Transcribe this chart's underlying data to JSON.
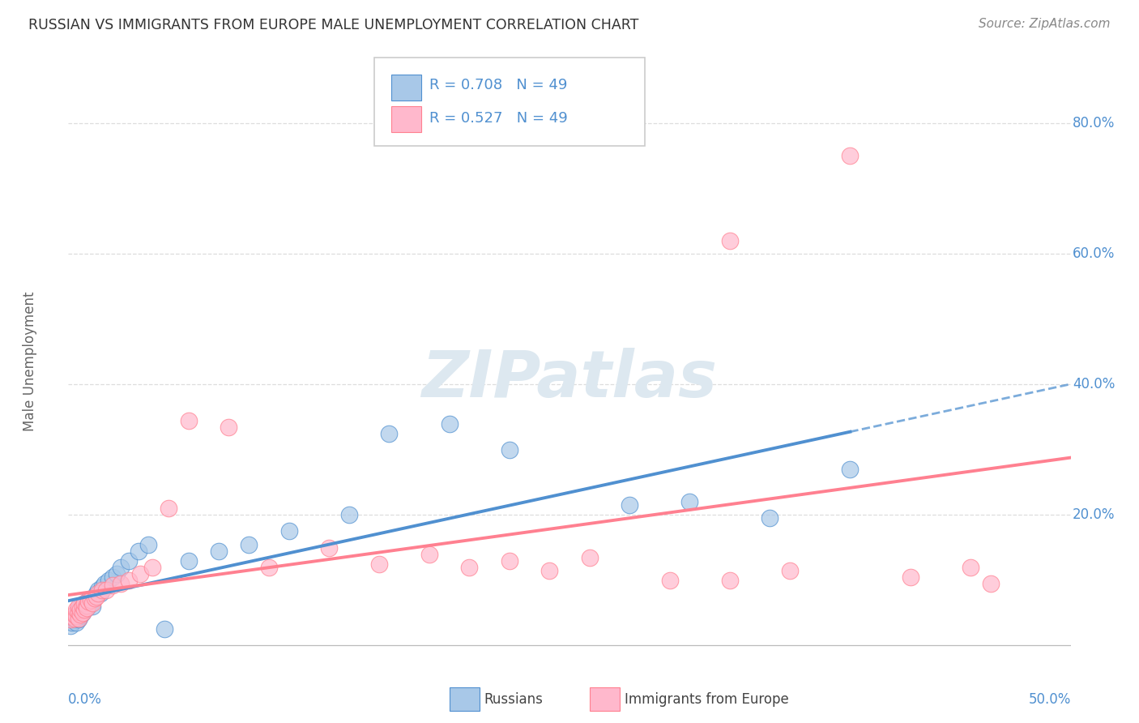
{
  "title": "RUSSIAN VS IMMIGRANTS FROM EUROPE MALE UNEMPLOYMENT CORRELATION CHART",
  "source": "Source: ZipAtlas.com",
  "ylabel": "Male Unemployment",
  "right_yticks": [
    "80.0%",
    "60.0%",
    "40.0%",
    "20.0%"
  ],
  "right_ytick_vals": [
    0.8,
    0.6,
    0.4,
    0.2
  ],
  "xlim": [
    0.0,
    0.5
  ],
  "ylim": [
    -0.03,
    0.9
  ],
  "legend_russian_R": "0.708",
  "legend_russian_N": "49",
  "legend_immig_R": "0.527",
  "legend_immig_N": "49",
  "blue_fill": "#A8C8E8",
  "pink_fill": "#FFB8CC",
  "blue_edge": "#5090D0",
  "pink_edge": "#FF8090",
  "blue_line": "#5090D0",
  "pink_line": "#FF8090",
  "grid_color": "#DDDDDD",
  "watermark_color": "#DDE8F0",
  "russians_x": [
    0.001,
    0.002,
    0.003,
    0.003,
    0.004,
    0.004,
    0.005,
    0.005,
    0.005,
    0.006,
    0.006,
    0.006,
    0.007,
    0.007,
    0.008,
    0.008,
    0.009,
    0.009,
    0.01,
    0.01,
    0.011,
    0.012,
    0.012,
    0.013,
    0.014,
    0.015,
    0.016,
    0.017,
    0.018,
    0.02,
    0.022,
    0.024,
    0.026,
    0.03,
    0.035,
    0.04,
    0.048,
    0.06,
    0.075,
    0.09,
    0.11,
    0.14,
    0.16,
    0.19,
    0.22,
    0.28,
    0.31,
    0.35,
    0.39
  ],
  "russians_y": [
    0.03,
    0.035,
    0.04,
    0.045,
    0.035,
    0.05,
    0.04,
    0.055,
    0.045,
    0.05,
    0.06,
    0.045,
    0.055,
    0.05,
    0.06,
    0.055,
    0.065,
    0.058,
    0.06,
    0.07,
    0.065,
    0.07,
    0.06,
    0.075,
    0.08,
    0.085,
    0.08,
    0.09,
    0.095,
    0.1,
    0.105,
    0.11,
    0.12,
    0.13,
    0.145,
    0.155,
    0.025,
    0.13,
    0.145,
    0.155,
    0.175,
    0.2,
    0.325,
    0.34,
    0.3,
    0.215,
    0.22,
    0.195,
    0.27
  ],
  "immig_x": [
    0.001,
    0.002,
    0.003,
    0.003,
    0.004,
    0.004,
    0.005,
    0.005,
    0.005,
    0.006,
    0.006,
    0.007,
    0.007,
    0.008,
    0.008,
    0.009,
    0.009,
    0.01,
    0.011,
    0.012,
    0.013,
    0.014,
    0.015,
    0.017,
    0.019,
    0.022,
    0.026,
    0.03,
    0.036,
    0.042,
    0.05,
    0.06,
    0.08,
    0.1,
    0.13,
    0.155,
    0.18,
    0.2,
    0.22,
    0.24,
    0.26,
    0.3,
    0.33,
    0.33,
    0.36,
    0.39,
    0.42,
    0.45,
    0.46
  ],
  "immig_y": [
    0.04,
    0.045,
    0.042,
    0.048,
    0.045,
    0.055,
    0.042,
    0.052,
    0.06,
    0.048,
    0.055,
    0.05,
    0.06,
    0.055,
    0.065,
    0.062,
    0.058,
    0.068,
    0.07,
    0.065,
    0.072,
    0.075,
    0.08,
    0.085,
    0.085,
    0.092,
    0.095,
    0.1,
    0.11,
    0.12,
    0.21,
    0.345,
    0.335,
    0.12,
    0.15,
    0.125,
    0.14,
    0.12,
    0.13,
    0.115,
    0.135,
    0.1,
    0.62,
    0.1,
    0.115,
    0.75,
    0.105,
    0.12,
    0.095
  ]
}
